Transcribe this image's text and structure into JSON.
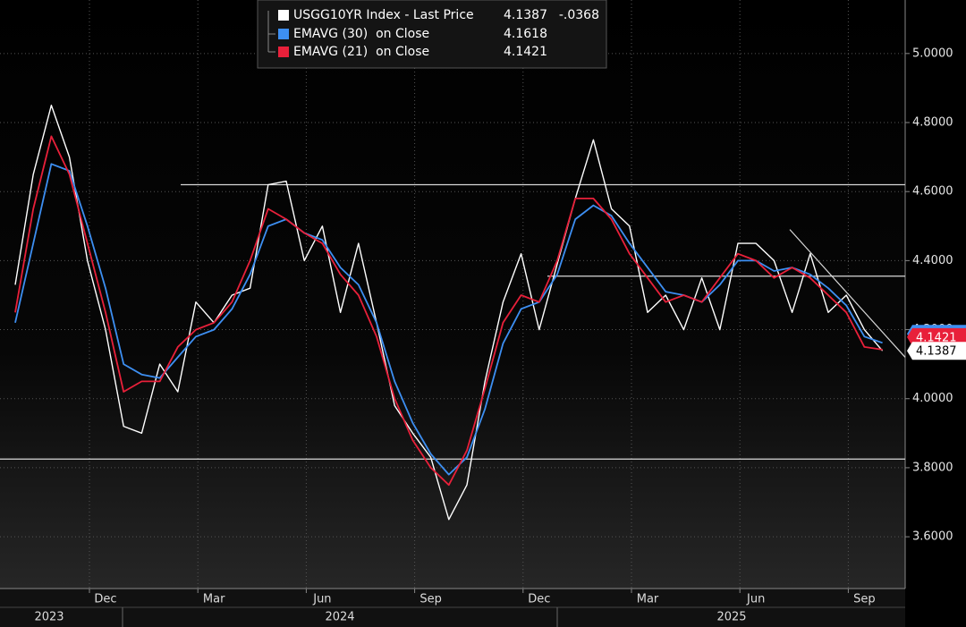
{
  "chart_data": {
    "type": "line",
    "categories": [
      null,
      null,
      null,
      null,
      null,
      "Dec",
      null,
      null,
      null,
      null,
      null,
      "Mar",
      null,
      null,
      null,
      null,
      null,
      "Jun",
      null,
      null,
      null,
      null,
      null,
      "Sep",
      null,
      null,
      null,
      null,
      null,
      "Dec",
      null,
      null,
      null,
      null,
      null,
      "Mar",
      null,
      null,
      null,
      null,
      null,
      "Jun",
      null,
      null,
      null,
      null,
      null,
      "Sep",
      null
    ],
    "years": [
      "2023",
      "2024",
      "2025"
    ],
    "series": [
      {
        "name": "USGG10YR Index - Last Price",
        "color": "#ffffff",
        "values": [
          4.33,
          4.65,
          4.85,
          4.7,
          4.4,
          4.2,
          3.92,
          3.9,
          4.1,
          4.02,
          4.28,
          4.22,
          4.3,
          4.32,
          4.62,
          4.63,
          4.4,
          4.5,
          4.25,
          4.45,
          4.22,
          3.98,
          3.9,
          3.83,
          3.65,
          3.75,
          4.05,
          4.28,
          4.42,
          4.2,
          4.39,
          4.58,
          4.75,
          4.55,
          4.5,
          4.25,
          4.3,
          4.2,
          4.35,
          4.2,
          4.45,
          4.45,
          4.4,
          4.25,
          4.42,
          4.25,
          4.3,
          4.2,
          4.1387
        ]
      },
      {
        "name": "EMAVG (30)  on Close",
        "color": "#3d8ff2",
        "values": [
          4.22,
          4.45,
          4.68,
          4.66,
          4.5,
          4.32,
          4.1,
          4.07,
          4.06,
          4.12,
          4.18,
          4.2,
          4.26,
          4.36,
          4.5,
          4.52,
          4.48,
          4.46,
          4.38,
          4.33,
          4.22,
          4.05,
          3.93,
          3.84,
          3.78,
          3.83,
          3.97,
          4.16,
          4.26,
          4.28,
          4.36,
          4.52,
          4.56,
          4.53,
          4.45,
          4.38,
          4.31,
          4.3,
          4.28,
          4.33,
          4.4,
          4.4,
          4.37,
          4.38,
          4.36,
          4.32,
          4.27,
          4.18,
          4.1618
        ]
      },
      {
        "name": "EMAVG (21)  on Close",
        "color": "#e8203a",
        "values": [
          4.25,
          4.55,
          4.76,
          4.65,
          4.45,
          4.25,
          4.02,
          4.05,
          4.05,
          4.15,
          4.2,
          4.22,
          4.28,
          4.4,
          4.55,
          4.52,
          4.48,
          4.45,
          4.36,
          4.3,
          4.18,
          4.0,
          3.88,
          3.8,
          3.75,
          3.85,
          4.03,
          4.22,
          4.3,
          4.28,
          4.4,
          4.58,
          4.58,
          4.52,
          4.42,
          4.35,
          4.28,
          4.3,
          4.28,
          4.35,
          4.42,
          4.4,
          4.35,
          4.38,
          4.35,
          4.3,
          4.25,
          4.15,
          4.1421
        ]
      }
    ],
    "change": {
      "value": -0.0368,
      "label": "-.0368"
    },
    "ylim": [
      3.45,
      5.155
    ],
    "yticks": [
      {
        "value": 3.6,
        "label": "3.6000"
      },
      {
        "value": 3.8,
        "label": "3.8000"
      },
      {
        "value": 4.0,
        "label": "4.0000"
      },
      {
        "value": 4.2,
        "label": "4.2000"
      },
      {
        "value": 4.4,
        "label": "4.4000"
      },
      {
        "value": 4.6,
        "label": "4.6000"
      },
      {
        "value": 4.8,
        "label": "4.8000"
      },
      {
        "value": 5.0,
        "label": "5.0000"
      }
    ],
    "hlines": [
      4.62,
      4.355,
      3.825
    ],
    "trendline": [
      4.49,
      4.12
    ],
    "grid": true
  }
}
